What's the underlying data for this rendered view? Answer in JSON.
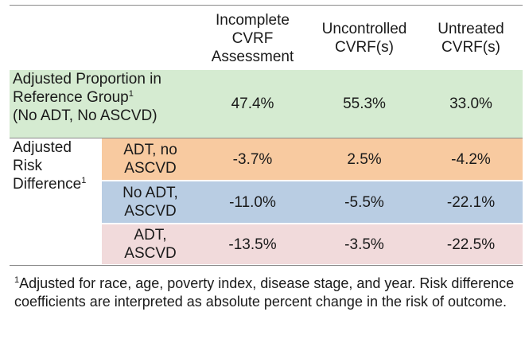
{
  "header": {
    "col1": [
      "Incomplete",
      "CVRF",
      "Assessment"
    ],
    "col2": [
      "Uncontrolled",
      "CVRF(s)"
    ],
    "col3": [
      "Untreated",
      "CVRF(s)"
    ]
  },
  "reference_row": {
    "label_line1": "Adjusted Proportion in",
    "label_line2": "Reference Group",
    "label_sup": "1",
    "label_line3": "(No ADT, No ASCVD)",
    "values": [
      "47.4%",
      "55.3%",
      "33.0%"
    ],
    "color": "#d5ebd1"
  },
  "risk_section": {
    "label_line1": "Adjusted",
    "label_line2": "Risk",
    "label_line3": "Difference",
    "label_sup": "1",
    "rows": [
      {
        "group": [
          "ADT, no",
          "ASCVD"
        ],
        "values": [
          "-3.7%",
          "2.5%",
          "-4.2%"
        ],
        "color": "#f8caa0"
      },
      {
        "group": [
          "No ADT,",
          "ASCVD"
        ],
        "values": [
          "-11.0%",
          "-5.5%",
          "-22.1%"
        ],
        "color": "#b9cde3"
      },
      {
        "group": [
          "ADT,",
          "ASCVD"
        ],
        "values": [
          "-13.5%",
          "-3.5%",
          "-22.5%"
        ],
        "color": "#f1dadb"
      }
    ]
  },
  "footnote": {
    "sup": "1",
    "text": "Adjusted for race, age, poverty index, disease stage, and year. Risk difference coefficients are interpreted as absolute percent change in the risk of outcome."
  }
}
